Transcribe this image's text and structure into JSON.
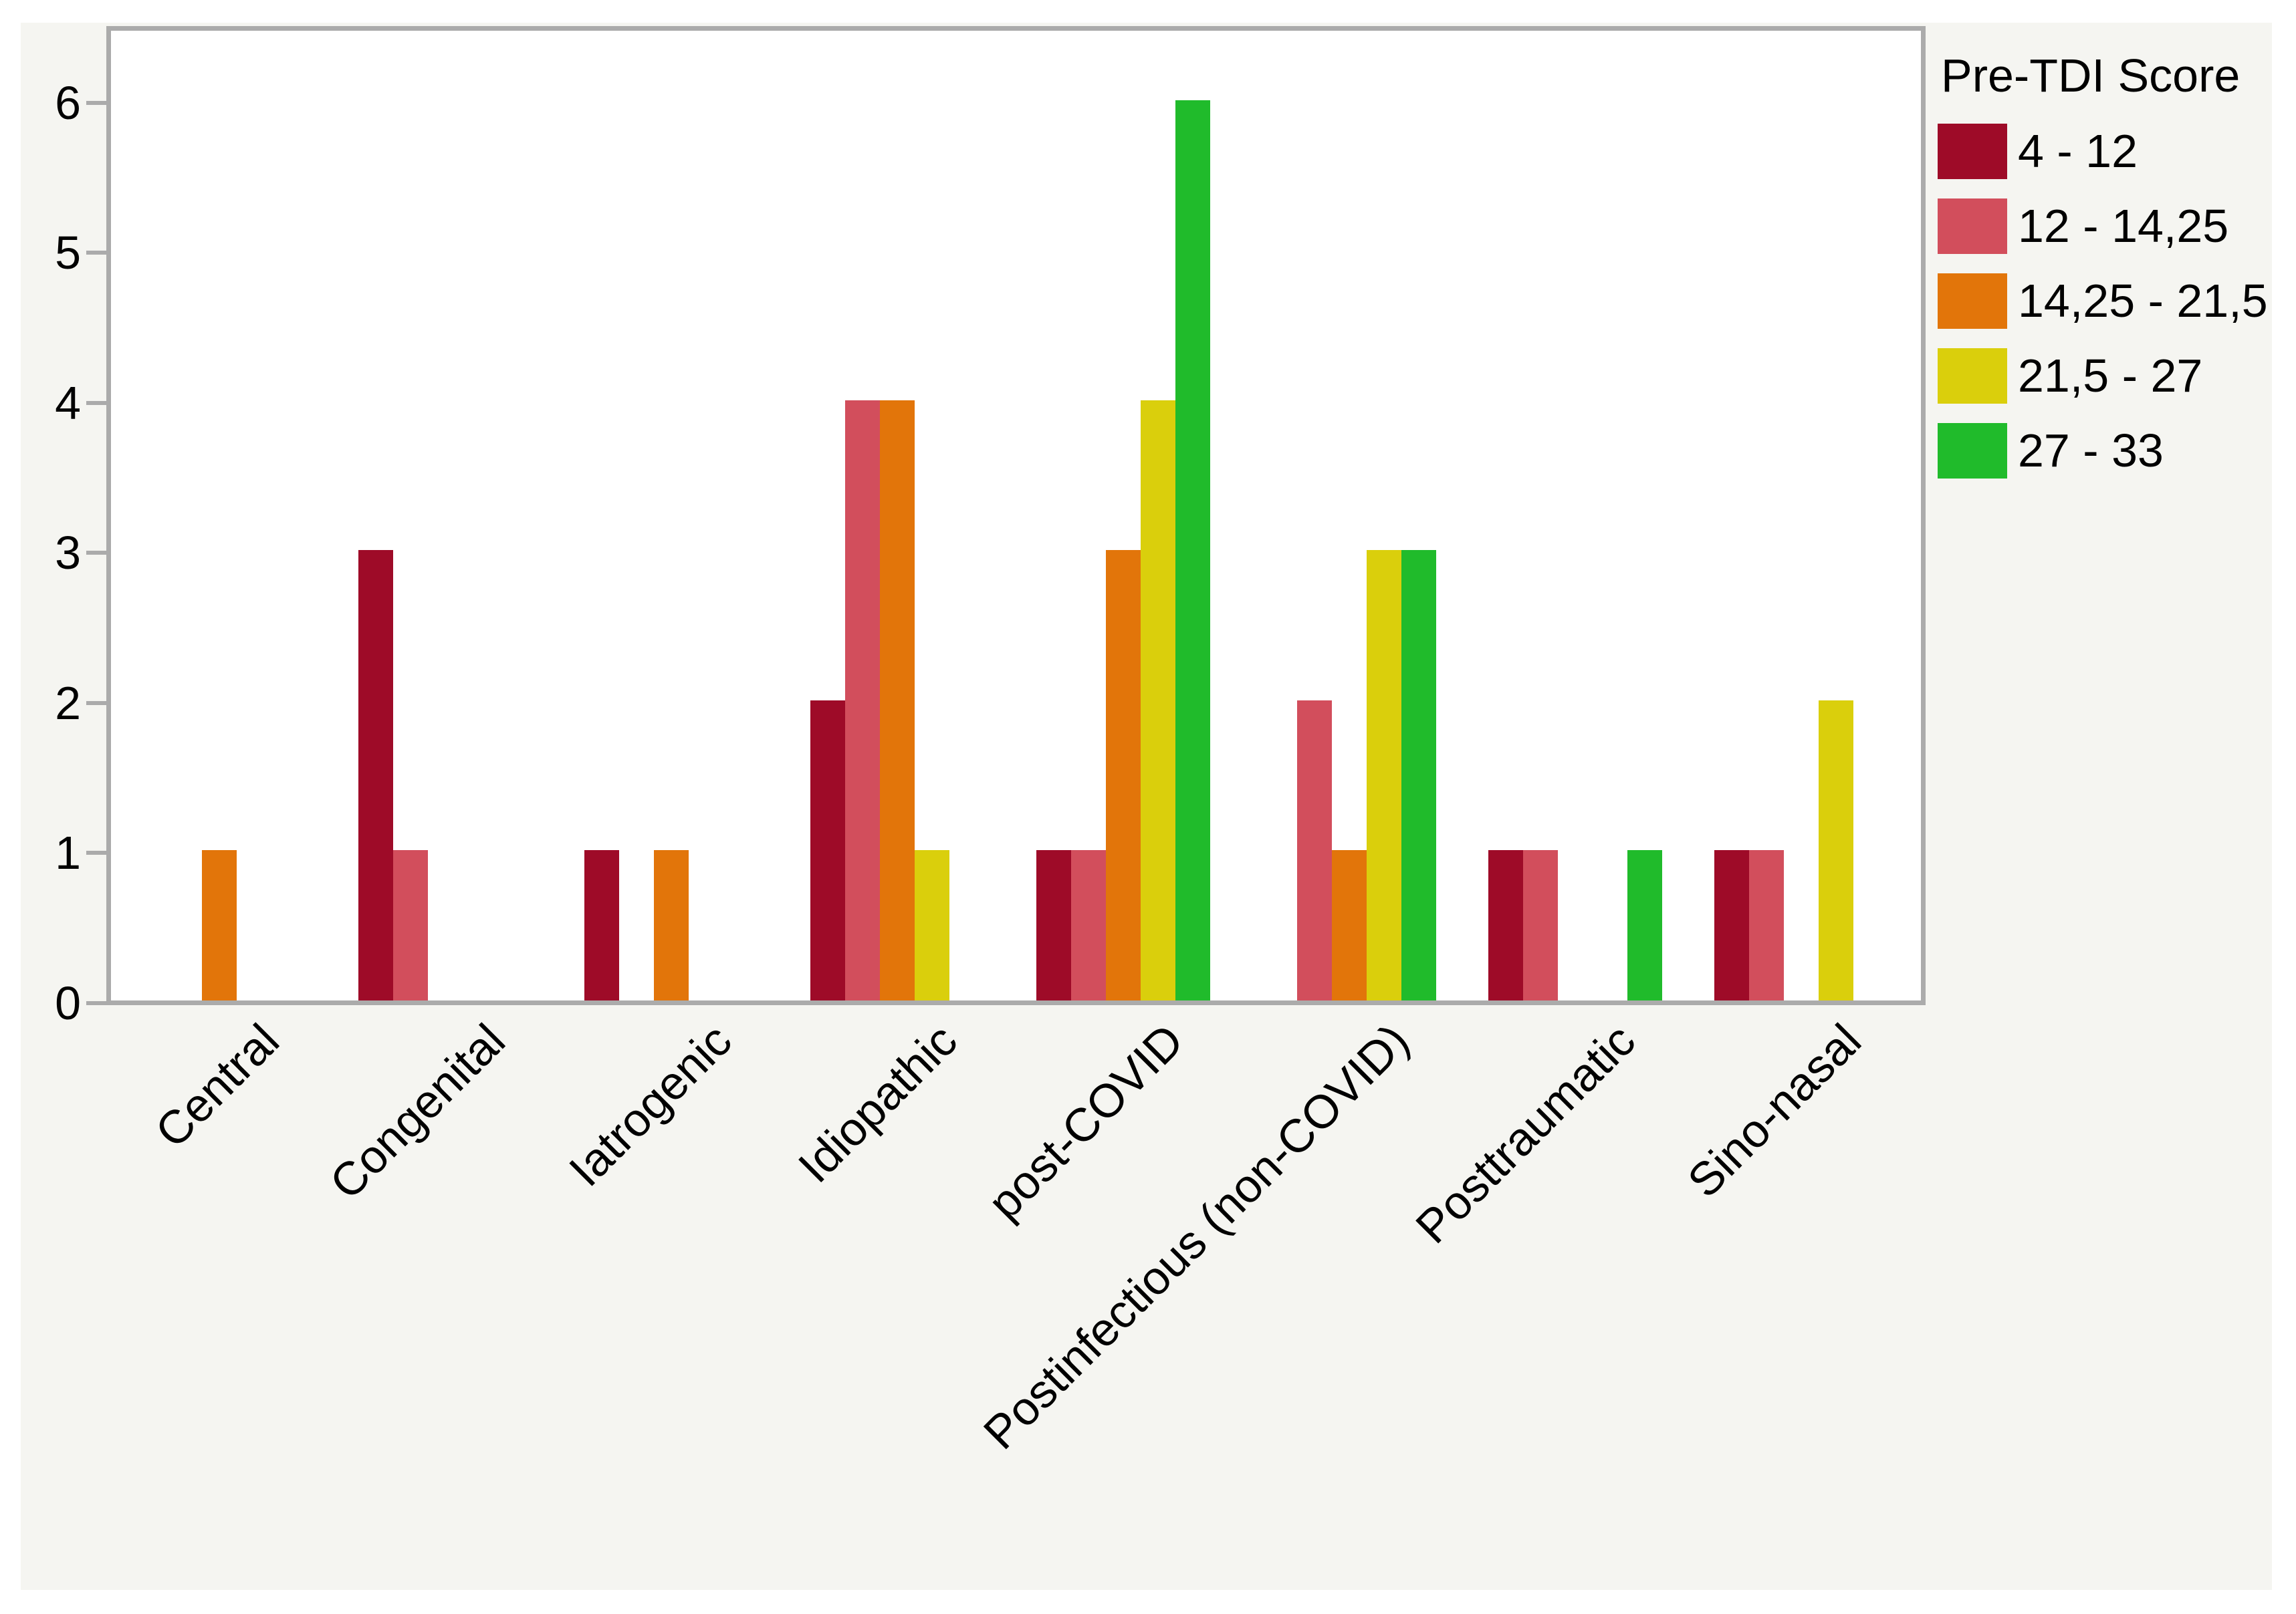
{
  "figure": {
    "page_background": "#FFFFFF",
    "panel_background": "#F5F5F1",
    "plot_background": "#FFFFFF",
    "axis_color": "#ABABAB",
    "text_color": "#000000"
  },
  "chart_data": {
    "type": "bar",
    "title": "",
    "xlabel": "",
    "ylabel": "",
    "legend_title": "Pre-TDI Score",
    "legend_position": "right",
    "grid": false,
    "ylim": [
      0,
      6.5
    ],
    "y_ticks": [
      "0",
      "1",
      "2",
      "3",
      "4",
      "5",
      "6"
    ],
    "categories": [
      "Central",
      "Congenital",
      "Iatrogenic",
      "Idiopathic",
      "post-COVID",
      "Postinfectious (non-COVID)",
      "Posttraumatic",
      "Sino-nasal"
    ],
    "series": [
      {
        "name": "4 - 12",
        "color": "#9E0B28",
        "values": [
          0,
          3,
          1,
          2,
          1,
          0,
          1,
          1
        ]
      },
      {
        "name": "12 - 14,25",
        "color": "#D24E5C",
        "values": [
          0,
          1,
          0,
          4,
          1,
          2,
          1,
          1
        ]
      },
      {
        "name": "14,25 - 21,5",
        "color": "#E2750A",
        "values": [
          1,
          0,
          1,
          4,
          3,
          1,
          0,
          0
        ]
      },
      {
        "name": "21,5 - 27",
        "color": "#DACF0C",
        "values": [
          0,
          0,
          0,
          1,
          4,
          3,
          0,
          2
        ]
      },
      {
        "name": "27 - 33",
        "color": "#20BB2B",
        "values": [
          0,
          0,
          0,
          0,
          6,
          3,
          1,
          0
        ]
      }
    ]
  }
}
